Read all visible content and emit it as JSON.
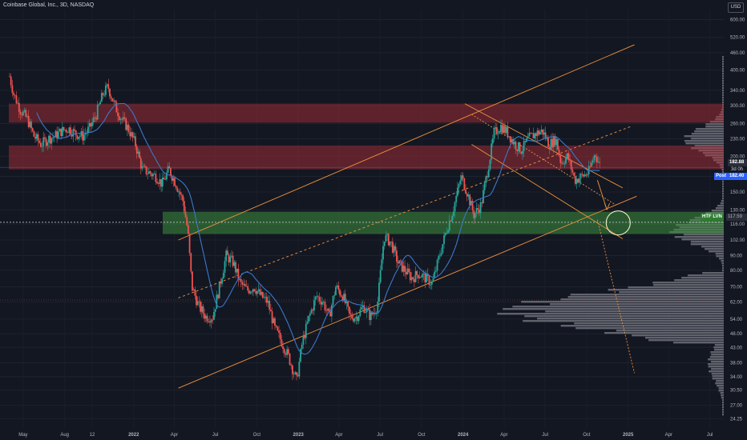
{
  "header": {
    "symbol_line": "Coinbase Global, Inc., 3D, NASDAQ"
  },
  "currency_label": "USD",
  "price_tags": {
    "last_price": "182.88",
    "countdown": "3d 0h",
    "post_label": "Post",
    "post_price": "182.40",
    "htf_label": "HTF LVN",
    "htf_price": "117.59"
  },
  "colors": {
    "background": "#131722",
    "up": "#26a69a",
    "down": "#ef5350",
    "ma": "#3a78c9",
    "trend": "#f0923e",
    "supply": "#b8303a",
    "demand": "#3e8f3e",
    "profile": "#6e7079"
  },
  "chart_data": {
    "type": "candlestick",
    "title": "Coinbase Global, Inc., 3D, NASDAQ",
    "y_scale": "log",
    "y_ticks": [
      600,
      520,
      460,
      400,
      340,
      300,
      260,
      230,
      200,
      170,
      150,
      130,
      116,
      102,
      90,
      80,
      70,
      62,
      54,
      48,
      43,
      38,
      34,
      30.5,
      27,
      24.25
    ],
    "y_tick_labels": [
      "600.00",
      "520.00",
      "460.00",
      "400.00",
      "340.00",
      "300.00",
      "260.00",
      "230.00",
      "200.00",
      "170.00",
      "150.00",
      "130.00",
      "116.00",
      "102.00",
      "90.00",
      "80.00",
      "70.00",
      "62.00",
      "54.00",
      "48.00",
      "43.00",
      "38.00",
      "34.00",
      "30.50",
      "27.00",
      "24.25"
    ],
    "ylim": [
      22.5,
      650
    ],
    "x_ticks": [
      "May",
      "Aug",
      "12",
      "2022",
      "Apr",
      "Jul",
      "Oct",
      "2023",
      "Apr",
      "Jul",
      "Oct",
      "2024",
      "Apr",
      "Jul",
      "Oct",
      "2025",
      "Apr",
      "Jul"
    ],
    "x_tick_dates": [
      "2021-05",
      "2021-08",
      "2021-10",
      "2022-01",
      "2022-04",
      "2022-07",
      "2022-10",
      "2023-01",
      "2023-04",
      "2023-07",
      "2023-10",
      "2024-01",
      "2024-04",
      "2024-07",
      "2024-10",
      "2025-01",
      "2025-04",
      "2025-07"
    ],
    "xlim": [
      "2021-04",
      "2025-08"
    ],
    "price_path": [
      [
        "2021-04",
        380
      ],
      [
        "2021-04-10",
        330
      ],
      [
        "2021-04-25",
        290
      ],
      [
        "2021-05-10",
        270
      ],
      [
        "2021-05-25",
        235
      ],
      [
        "2021-06-10",
        220
      ],
      [
        "2021-06-25",
        230
      ],
      [
        "2021-07-10",
        235
      ],
      [
        "2021-07-25",
        245
      ],
      [
        "2021-08-10",
        250
      ],
      [
        "2021-08-25",
        240
      ],
      [
        "2021-09-10",
        235
      ],
      [
        "2021-09-25",
        250
      ],
      [
        "2021-10-10",
        280
      ],
      [
        "2021-10-25",
        330
      ],
      [
        "2021-11-05",
        350
      ],
      [
        "2021-11-20",
        300
      ],
      [
        "2021-12-05",
        270
      ],
      [
        "2021-12-20",
        250
      ],
      [
        "2022-01-05",
        220
      ],
      [
        "2022-01-20",
        180
      ],
      [
        "2022-02-05",
        175
      ],
      [
        "2022-02-20",
        170
      ],
      [
        "2022-03-05",
        160
      ],
      [
        "2022-03-20",
        180
      ],
      [
        "2022-04-05",
        160
      ],
      [
        "2022-04-20",
        140
      ],
      [
        "2022-05-01",
        110
      ],
      [
        "2022-05-10",
        70
      ],
      [
        "2022-05-25",
        60
      ],
      [
        "2022-06-10",
        55
      ],
      [
        "2022-06-25",
        55
      ],
      [
        "2022-07-10",
        70
      ],
      [
        "2022-07-25",
        90
      ],
      [
        "2022-08-10",
        85
      ],
      [
        "2022-08-25",
        72
      ],
      [
        "2022-09-10",
        68
      ],
      [
        "2022-09-25",
        70
      ],
      [
        "2022-10-10",
        65
      ],
      [
        "2022-10-25",
        62
      ],
      [
        "2022-11-10",
        50
      ],
      [
        "2022-11-25",
        45
      ],
      [
        "2022-12-10",
        40
      ],
      [
        "2022-12-28",
        33
      ],
      [
        "2023-01-10",
        45
      ],
      [
        "2023-01-25",
        55
      ],
      [
        "2023-02-10",
        65
      ],
      [
        "2023-02-25",
        62
      ],
      [
        "2023-03-10",
        55
      ],
      [
        "2023-03-25",
        70
      ],
      [
        "2023-04-10",
        65
      ],
      [
        "2023-04-25",
        55
      ],
      [
        "2023-05-10",
        55
      ],
      [
        "2023-05-25",
        60
      ],
      [
        "2023-06-10",
        55
      ],
      [
        "2023-06-25",
        60
      ],
      [
        "2023-07-10",
        105
      ],
      [
        "2023-07-25",
        100
      ],
      [
        "2023-08-10",
        85
      ],
      [
        "2023-08-25",
        80
      ],
      [
        "2023-09-10",
        75
      ],
      [
        "2023-09-25",
        78
      ],
      [
        "2023-10-10",
        75
      ],
      [
        "2023-10-25",
        72
      ],
      [
        "2023-11-10",
        90
      ],
      [
        "2023-11-25",
        110
      ],
      [
        "2023-12-10",
        130
      ],
      [
        "2023-12-28",
        170
      ],
      [
        "2024-01-10",
        150
      ],
      [
        "2024-01-25",
        125
      ],
      [
        "2024-02-10",
        135
      ],
      [
        "2024-02-25",
        180
      ],
      [
        "2024-03-10",
        240
      ],
      [
        "2024-03-25",
        255
      ],
      [
        "2024-04-10",
        240
      ],
      [
        "2024-04-25",
        220
      ],
      [
        "2024-05-10",
        210
      ],
      [
        "2024-05-25",
        230
      ],
      [
        "2024-06-10",
        240
      ],
      [
        "2024-06-25",
        245
      ],
      [
        "2024-07-10",
        220
      ],
      [
        "2024-07-25",
        230
      ],
      [
        "2024-08-05",
        190
      ],
      [
        "2024-08-20",
        200
      ],
      [
        "2024-09-05",
        165
      ],
      [
        "2024-09-20",
        170
      ],
      [
        "2024-10-05",
        175
      ],
      [
        "2024-10-20",
        205
      ],
      [
        "2024-11-01",
        182.88
      ]
    ],
    "annotations": {
      "last_price": 182.88,
      "post_market": 182.4,
      "htf_lvn": 117.59,
      "supply_zones": [
        [
          262,
          305
        ],
        [
          180,
          218
        ]
      ],
      "demand_zone": [
        107,
        128
      ],
      "target_circle": {
        "date": "2024-12-10",
        "price": 117
      }
    }
  }
}
